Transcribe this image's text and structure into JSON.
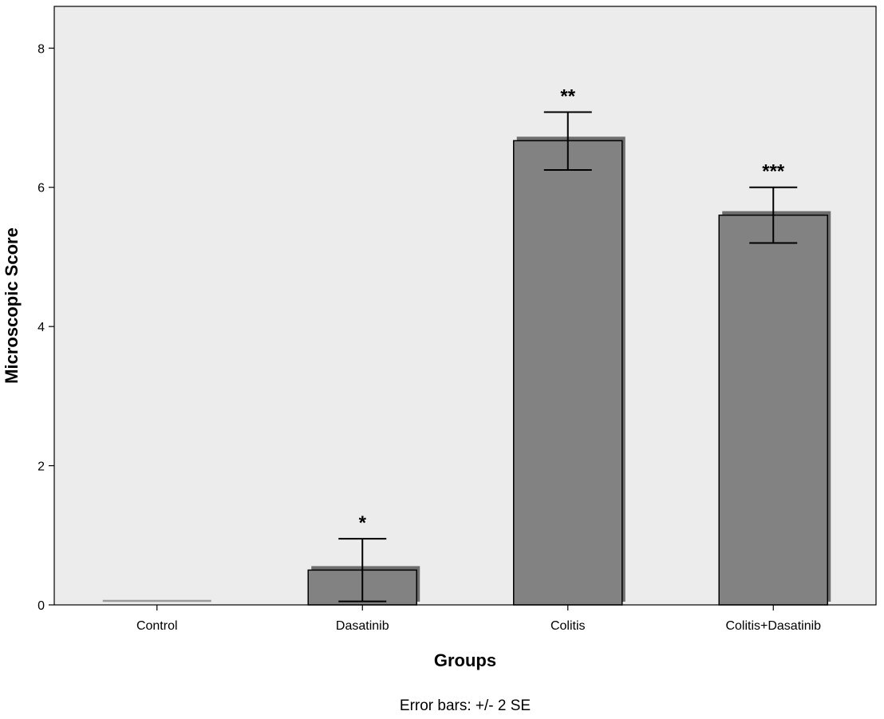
{
  "chart_data": {
    "type": "bar",
    "categories": [
      "Control",
      "Dasatinib",
      "Colitis",
      "Colitis+Dasatinib"
    ],
    "values": [
      0.0,
      0.5,
      6.67,
      5.6
    ],
    "error_bars": [
      {
        "low": 0.0,
        "high": 0.0
      },
      {
        "low": 0.05,
        "high": 0.95
      },
      {
        "low": 6.25,
        "high": 7.08
      },
      {
        "low": 5.2,
        "high": 6.0
      }
    ],
    "significance": [
      "",
      "*",
      "**",
      "***"
    ],
    "xlabel": "Groups",
    "ylabel": "Microscopic Score",
    "ylim": [
      0,
      8.6
    ],
    "yticks": [
      0,
      2,
      4,
      6,
      8
    ],
    "note": "Error bars: +/- 2 SE",
    "grid": false,
    "colors": {
      "plot_background": "#ececec",
      "bar_fill": "#828282",
      "bar_shadow": "#6e6e6e",
      "bar_edge": "#000000"
    }
  }
}
